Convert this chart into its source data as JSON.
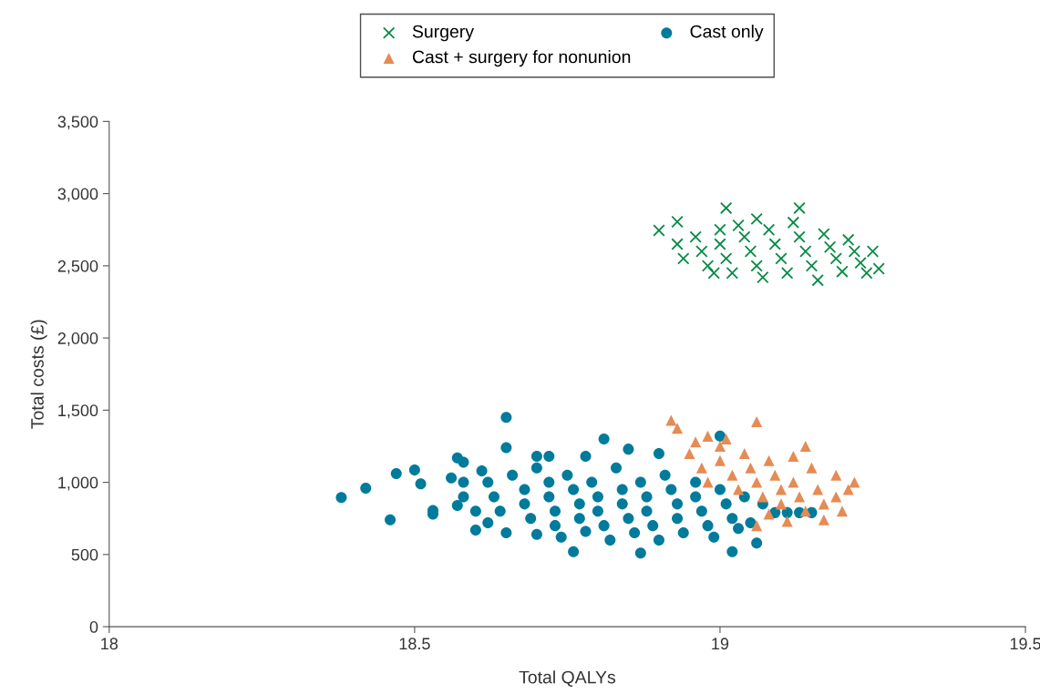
{
  "chart_data": {
    "type": "scatter",
    "xlabel": "Total QALYs",
    "ylabel": "Total costs (£)",
    "xlim": [
      18,
      19.5
    ],
    "xticks": [
      18,
      18.5,
      19,
      19.5
    ],
    "ylim": [
      0,
      3500
    ],
    "yticks": [
      0,
      500,
      {
        "value": 1000,
        "label": "1,000"
      },
      {
        "value": 1500,
        "label": "1,500"
      },
      {
        "value": 2000,
        "label": "2,000"
      },
      {
        "value": 2500,
        "label": "2,500"
      },
      {
        "value": 3000,
        "label": "3,000"
      },
      {
        "value": 3500,
        "label": "3,500"
      }
    ],
    "grid": false,
    "legend": "top",
    "series": [
      {
        "name": "Surgery",
        "color": "#068a47",
        "marker": "cross",
        "x": [
          18.9,
          18.93,
          19.01,
          19.13,
          19.26,
          19.25,
          19.06,
          18.93,
          18.94,
          18.96,
          18.97,
          18.98,
          19.0,
          19.0,
          19.01,
          19.02,
          19.04,
          19.05,
          19.06,
          19.07,
          19.08,
          19.09,
          19.1,
          19.11,
          19.12,
          19.13,
          19.14,
          19.15,
          19.16,
          19.17,
          19.18,
          19.19,
          19.2,
          19.21,
          19.22,
          19.23,
          19.24,
          19.03,
          18.99
        ],
        "values": [
          2745,
          2805,
          2900,
          2900,
          2480,
          2600,
          2825,
          2650,
          2550,
          2700,
          2600,
          2500,
          2750,
          2650,
          2550,
          2450,
          2700,
          2600,
          2500,
          2420,
          2750,
          2650,
          2550,
          2450,
          2800,
          2700,
          2600,
          2500,
          2400,
          2720,
          2630,
          2550,
          2460,
          2680,
          2600,
          2520,
          2450,
          2780,
          2450
        ]
      },
      {
        "name": "Cast only",
        "color": "#007b9b",
        "marker": "circle",
        "x": [
          18.38,
          18.42,
          18.47,
          18.5,
          18.46,
          18.51,
          18.53,
          18.53,
          18.56,
          18.57,
          18.58,
          18.58,
          18.57,
          18.6,
          18.65,
          18.65,
          18.7,
          18.76,
          18.81,
          18.87,
          19.0,
          19.06,
          19.02,
          19.09,
          19.11,
          19.13,
          19.15,
          19.05,
          19.07,
          18.62,
          18.63,
          18.64,
          18.62,
          18.65,
          18.66,
          18.68,
          18.68,
          18.69,
          18.7,
          18.7,
          18.72,
          18.72,
          18.73,
          18.73,
          18.74,
          18.75,
          18.76,
          18.77,
          18.77,
          18.78,
          18.79,
          18.8,
          18.8,
          18.81,
          18.82,
          18.83,
          18.84,
          18.84,
          18.85,
          18.86,
          18.87,
          18.88,
          18.88,
          18.89,
          18.9,
          18.91,
          18.92,
          18.93,
          18.93,
          18.94,
          18.96,
          18.96,
          18.97,
          18.98,
          18.99,
          19.0,
          19.01,
          19.02,
          19.03,
          19.04,
          18.85,
          18.9,
          18.78,
          18.72,
          18.6,
          18.58,
          18.61
        ],
        "values": [
          895,
          960,
          1060,
          1085,
          740,
          990,
          780,
          805,
          1030,
          1170,
          1140,
          1000,
          840,
          670,
          1450,
          1240,
          1180,
          520,
          1300,
          510,
          1320,
          580,
          520,
          790,
          790,
          790,
          790,
          720,
          850,
          1000,
          900,
          800,
          720,
          650,
          1050,
          950,
          850,
          750,
          640,
          1100,
          1000,
          900,
          800,
          700,
          620,
          1050,
          950,
          850,
          750,
          660,
          1000,
          900,
          800,
          700,
          600,
          1100,
          950,
          850,
          750,
          650,
          1000,
          900,
          800,
          700,
          600,
          1050,
          950,
          850,
          750,
          650,
          1000,
          900,
          800,
          700,
          620,
          950,
          850,
          750,
          680,
          900,
          1230,
          1200,
          1180,
          1180,
          800,
          900,
          1080
        ]
      },
      {
        "name": "Cast + surgery for nonunion",
        "color": "#e58b54",
        "marker": "triangle",
        "x": [
          18.92,
          18.93,
          19.06,
          18.96,
          19.22,
          18.95,
          18.97,
          18.98,
          19.0,
          19.0,
          19.02,
          19.03,
          19.04,
          19.05,
          19.06,
          19.07,
          19.08,
          19.09,
          19.1,
          19.1,
          19.12,
          19.12,
          19.13,
          19.14,
          19.15,
          19.16,
          19.17,
          19.17,
          19.19,
          19.19,
          19.2,
          19.21,
          19.11,
          19.06,
          19.08,
          19.01,
          19.14,
          18.98
        ],
        "values": [
          1430,
          1375,
          1420,
          1280,
          1000,
          1200,
          1100,
          1000,
          1250,
          1150,
          1050,
          950,
          1200,
          1100,
          1000,
          900,
          1150,
          1050,
          950,
          850,
          1180,
          1000,
          900,
          800,
          1100,
          950,
          850,
          740,
          1050,
          900,
          800,
          950,
          730,
          700,
          780,
          1300,
          1250,
          1320
        ]
      }
    ]
  }
}
